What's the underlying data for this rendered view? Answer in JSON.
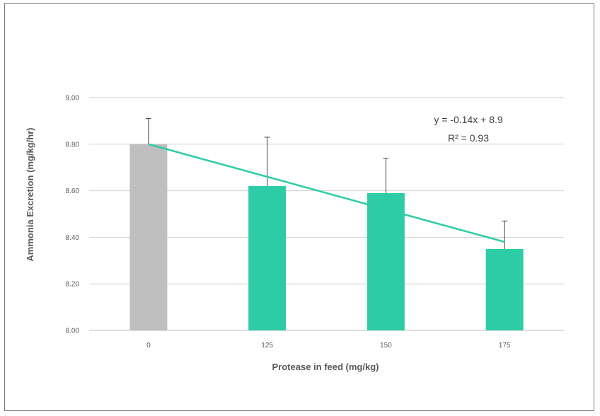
{
  "chart_data": {
    "type": "bar",
    "title": "",
    "xlabel": "Protease in feed (mg/kg)",
    "ylabel": "Ammonia Excretion (mg/kg/hr)",
    "categories": [
      "0",
      "125",
      "150",
      "175"
    ],
    "values": [
      8.8,
      8.62,
      8.59,
      8.35
    ],
    "error_plus": [
      0.11,
      0.21,
      0.15,
      0.12
    ],
    "bar_colors": [
      "#bfbfbf",
      "#2ecca6",
      "#2ecca6",
      "#2ecca6"
    ],
    "ylim": [
      8.0,
      9.0
    ],
    "yticks": [
      "8.00",
      "8.20",
      "8.40",
      "8.60",
      "8.80",
      "9.00"
    ],
    "grid": true,
    "trendline": {
      "type": "linear",
      "color": "#2ecca6",
      "start": 8.8,
      "end": 8.38,
      "equation": "y = -0.14x + 8.9",
      "r2_text": "R² = 0.93"
    }
  }
}
